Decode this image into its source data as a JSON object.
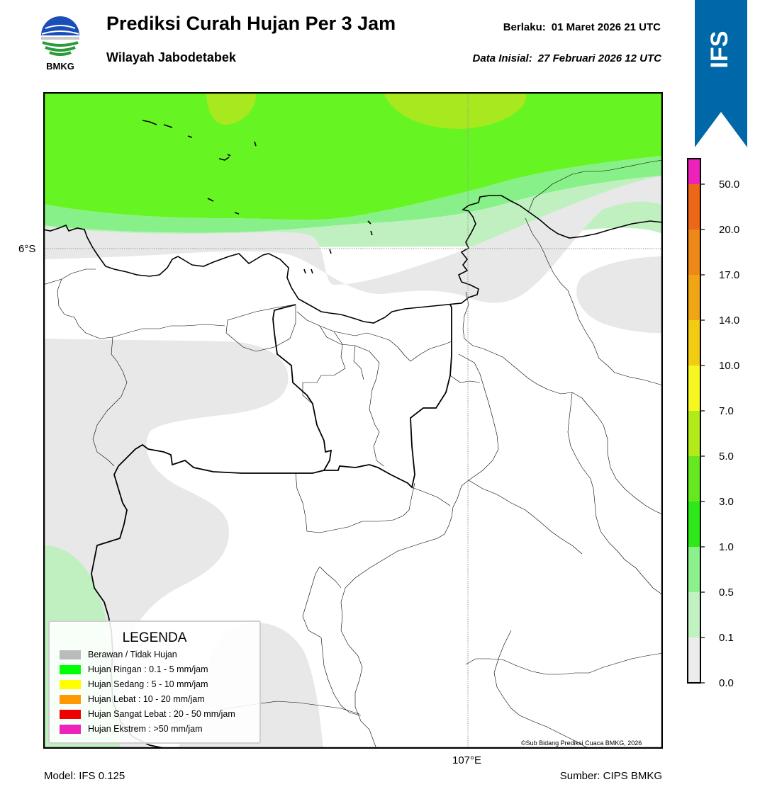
{
  "header": {
    "logo_text": "BMKG",
    "title": "Prediksi Curah Hujan Per 3 Jam",
    "subtitle": "Wilayah Jabodetabek",
    "valid_label": "Berlaku:",
    "valid_value": "01 Maret 2026 21 UTC",
    "init_label": "Data Inisial:",
    "init_value": "27 Februari 2026 12 UTC",
    "banner_text": "IFS",
    "banner_color": "#0068a8"
  },
  "map": {
    "lat_label": "6°S",
    "lon_label": "107°E",
    "copyright": "©Sub Bidang Prediksi Cuaca BMKG, 2026",
    "colors": {
      "no_rain": "#e8e8e8",
      "r0_1": "#c0f0c0",
      "r0_5": "#88f088",
      "r1_0": "#66f522",
      "r3_0": "#a8e81e"
    }
  },
  "legend": {
    "title": "LEGENDA",
    "items": [
      {
        "label": "Berawan / Tidak Hujan",
        "color": "#bbbbbb"
      },
      {
        "label": "Hujan Ringan : 0.1 - 5 mm/jam",
        "color": "#00ff00"
      },
      {
        "label": "Hujan Sedang : 5 - 10 mm/jam",
        "color": "#ffff00"
      },
      {
        "label": "Hujan Lebat : 10 - 20 mm/jam",
        "color": "#ff9900"
      },
      {
        "label": "Hujan Sangat Lebat : 20 - 50 mm/jam",
        "color": "#ee0000"
      },
      {
        "label": "Hujan Ekstrem : >50 mm/jam",
        "color": "#ee22bb"
      }
    ]
  },
  "colorbar": {
    "ticks": [
      "0.0",
      "0.1",
      "0.5",
      "1.0",
      "3.0",
      "5.0",
      "7.0",
      "10.0",
      "14.0",
      "17.0",
      "20.0",
      "50.0"
    ],
    "colors": [
      "#ececec",
      "#c2f2c2",
      "#8cf08c",
      "#2ee81a",
      "#66e81e",
      "#b2ea1a",
      "#f6f620",
      "#f2cc12",
      "#f0a614",
      "#ee8818",
      "#ec6818",
      "#e62e18",
      "#ee22bb"
    ]
  },
  "footer": {
    "model": "Model: IFS 0.125",
    "source": "Sumber: CIPS BMKG"
  }
}
